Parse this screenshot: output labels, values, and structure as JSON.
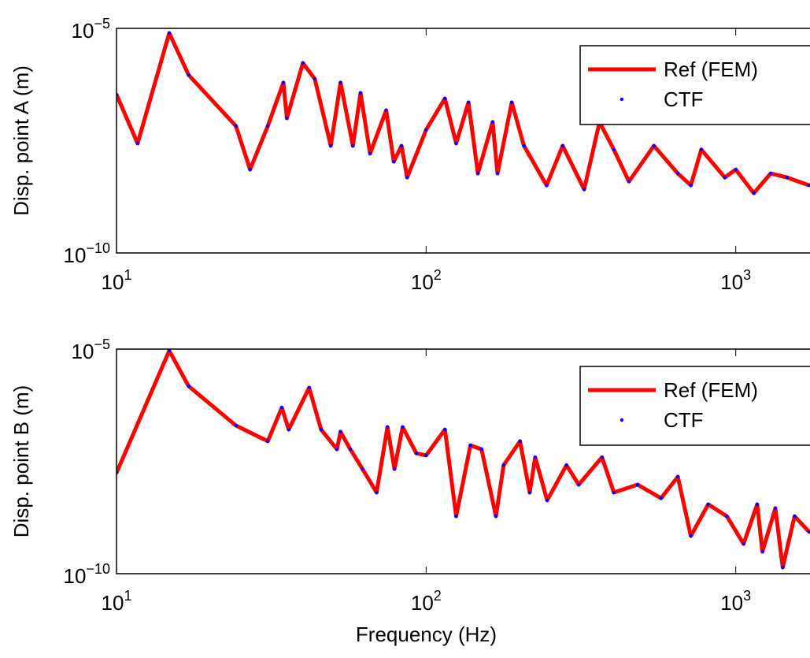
{
  "chart_data": [
    {
      "type": "line",
      "ylabel": "Disp. point A (m)",
      "xscale": "log",
      "yscale": "log",
      "legend": "northeast",
      "xlim": [
        10,
        1727
      ],
      "ylim": [
        1e-10,
        1e-05
      ],
      "xticks": [
        {
          "value": 10,
          "label": "101"
        },
        {
          "value": 100,
          "label": "102"
        },
        {
          "value": 1000,
          "label": "103"
        }
      ],
      "yticks": [
        {
          "value": 1e-10,
          "label": "10−10"
        },
        {
          "value": 1e-05,
          "label": "10−5"
        }
      ],
      "x": [
        10,
        11.7,
        14.8,
        17.1,
        24.3,
        27,
        30.8,
        34.6,
        35.5,
        40,
        43.7,
        49.2,
        52.9,
        58,
        61.4,
        65.9,
        74.3,
        78.6,
        83.3,
        86.8,
        100,
        115,
        125,
        137,
        147,
        164,
        170,
        189,
        207,
        245,
        276,
        324,
        363,
        404,
        452,
        544,
        650,
        716,
        774,
        922,
        1000,
        1144,
        1297,
        1464,
        1727
      ],
      "series": [
        {
          "name": "Ref (FEM)",
          "color": "#ff0000",
          "style": "line",
          "values": [
            3.36e-07,
            2.75e-08,
            7.85e-06,
            9.2e-07,
            6.7e-08,
            7.2e-09,
            6.7e-08,
            6.2e-07,
            1e-07,
            1.69e-06,
            7.5e-07,
            2.43e-08,
            6.2e-07,
            2.43e-08,
            3.64e-07,
            1.63e-08,
            1.5e-07,
            1.08e-08,
            2.43e-08,
            4.8e-09,
            5.5e-08,
            2.75e-07,
            2.75e-08,
            2.25e-07,
            5.9e-09,
            8.2e-08,
            5.9e-09,
            2.25e-07,
            2.43e-08,
            3.2e-09,
            2.43e-08,
            2.6e-09,
            8.2e-08,
            2e-08,
            3.9e-09,
            2.43e-08,
            5.9e-09,
            3.2e-09,
            2e-08,
            4.8e-09,
            7.2e-09,
            2.15e-09,
            5.9e-09,
            4.8e-09,
            3.2e-09
          ]
        },
        {
          "name": "CTF",
          "color": "#0000ff",
          "style": "dots",
          "values": [
            3.36e-07,
            2.75e-08,
            7.85e-06,
            9.2e-07,
            6.7e-08,
            7.2e-09,
            6.7e-08,
            6.2e-07,
            1e-07,
            1.69e-06,
            7.5e-07,
            2.43e-08,
            6.2e-07,
            2.43e-08,
            3.64e-07,
            1.63e-08,
            1.5e-07,
            1.08e-08,
            2.43e-08,
            4.8e-09,
            5.5e-08,
            2.75e-07,
            2.75e-08,
            2.25e-07,
            5.9e-09,
            8.2e-08,
            5.9e-09,
            2.25e-07,
            2.43e-08,
            3.2e-09,
            2.43e-08,
            2.6e-09,
            8.2e-08,
            2e-08,
            3.9e-09,
            2.43e-08,
            5.9e-09,
            3.2e-09,
            2e-08,
            4.8e-09,
            7.2e-09,
            2.15e-09,
            5.9e-09,
            4.8e-09,
            3.2e-09
          ]
        }
      ]
    },
    {
      "type": "line",
      "ylabel": "Disp. point B (m)",
      "xlabel": "Frequency (Hz)",
      "xscale": "log",
      "yscale": "log",
      "legend": "northeast",
      "xlim": [
        10,
        1727
      ],
      "ylim": [
        1e-10,
        1e-05
      ],
      "xticks": [
        {
          "value": 10,
          "label": "101"
        },
        {
          "value": 100,
          "label": "102"
        },
        {
          "value": 1000,
          "label": "103"
        }
      ],
      "yticks": [
        {
          "value": 1e-10,
          "label": "10−10"
        },
        {
          "value": 1e-05,
          "label": "10−5"
        }
      ],
      "x": [
        10,
        14.8,
        17.1,
        24.3,
        30.8,
        34.2,
        36,
        41.9,
        45.8,
        51.5,
        52.9,
        56.9,
        62.3,
        69.2,
        75,
        79,
        84,
        93,
        100,
        115,
        125,
        139,
        151,
        168,
        178,
        201,
        216,
        225,
        246,
        284,
        311,
        370,
        404,
        482,
        574,
        650,
        716,
        815,
        936,
        1060,
        1173,
        1219,
        1343,
        1418,
        1549,
        1727
      ],
      "series": [
        {
          "name": "Ref (FEM)",
          "color": "#ff0000",
          "style": "line",
          "values": [
            1.76e-08,
            9.2e-06,
            1.5e-06,
            1.99e-07,
            8.9e-08,
            5e-07,
            1.62e-07,
            1.38e-06,
            1.62e-07,
            5.9e-08,
            1.44e-07,
            5.9e-08,
            2.15e-08,
            6.4e-09,
            1.83e-07,
            2.15e-08,
            1.83e-07,
            4.8e-08,
            4.3e-08,
            1.62e-07,
            1.9e-09,
            7.2e-08,
            5.9e-08,
            1.9e-09,
            2.6e-08,
            8.9e-08,
            6.4e-09,
            3.9e-08,
            4.3e-09,
            2.6e-08,
            9.6e-09,
            3.9e-08,
            6.4e-09,
            9.6e-09,
            4.8e-09,
            1.44e-08,
            6.9e-10,
            3.5e-09,
            1.9e-09,
            4.6e-10,
            3.5e-09,
            3.1e-10,
            2.86e-09,
            1.38e-10,
            1.9e-09,
            8.5e-10
          ]
        },
        {
          "name": "CTF",
          "color": "#0000ff",
          "style": "dots",
          "values": [
            1.76e-08,
            9.2e-06,
            1.5e-06,
            1.99e-07,
            8.9e-08,
            5e-07,
            1.62e-07,
            1.38e-06,
            1.62e-07,
            5.9e-08,
            1.44e-07,
            5.9e-08,
            2.15e-08,
            6.4e-09,
            1.83e-07,
            2.15e-08,
            1.83e-07,
            4.8e-08,
            4.3e-08,
            1.62e-07,
            1.9e-09,
            7.2e-08,
            5.9e-08,
            1.9e-09,
            2.6e-08,
            8.9e-08,
            6.4e-09,
            3.9e-08,
            4.3e-09,
            2.6e-08,
            9.6e-09,
            3.9e-08,
            6.4e-09,
            9.6e-09,
            4.8e-09,
            1.44e-08,
            6.9e-10,
            3.5e-09,
            1.9e-09,
            4.6e-10,
            3.5e-09,
            3.1e-10,
            2.86e-09,
            1.38e-10,
            1.9e-09,
            8.5e-10
          ]
        }
      ]
    }
  ]
}
